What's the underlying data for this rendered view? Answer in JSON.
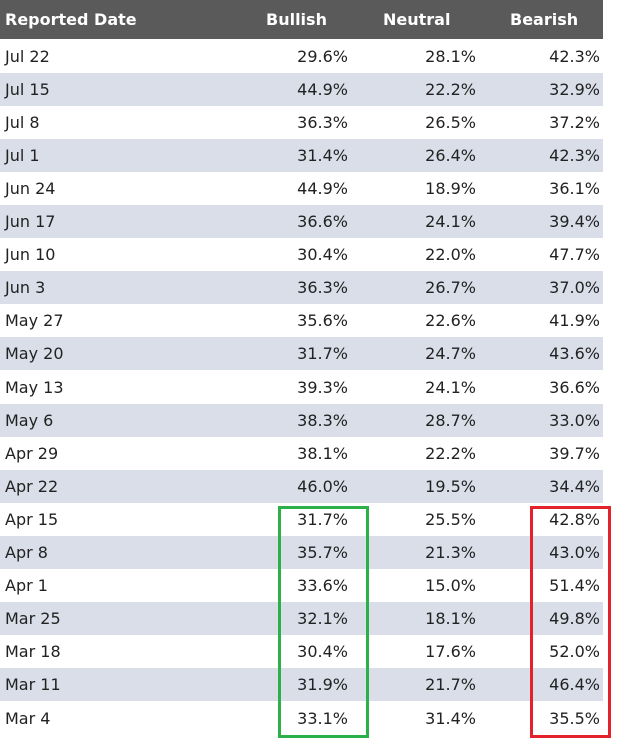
{
  "table": {
    "header": [
      "Reported Date",
      "Bullish",
      "Neutral",
      "Bearish"
    ],
    "rows": [
      [
        "Jul 22",
        "29.6%",
        "28.1%",
        "42.3%"
      ],
      [
        "Jul 15",
        "44.9%",
        "22.2%",
        "32.9%"
      ],
      [
        "Jul 8",
        "36.3%",
        "26.5%",
        "37.2%"
      ],
      [
        "Jul 1",
        "31.4%",
        "26.4%",
        "42.3%"
      ],
      [
        "Jun 24",
        "44.9%",
        "18.9%",
        "36.1%"
      ],
      [
        "Jun 17",
        "36.6%",
        "24.1%",
        "39.4%"
      ],
      [
        "Jun 10",
        "30.4%",
        "22.0%",
        "47.7%"
      ],
      [
        "Jun 3",
        "36.3%",
        "26.7%",
        "37.0%"
      ],
      [
        "May 27",
        "35.6%",
        "22.6%",
        "41.9%"
      ],
      [
        "May 20",
        "31.7%",
        "24.7%",
        "43.6%"
      ],
      [
        "May 13",
        "39.3%",
        "24.1%",
        "36.6%"
      ],
      [
        "May 6",
        "38.3%",
        "28.7%",
        "33.0%"
      ],
      [
        "Apr 29",
        "38.1%",
        "22.2%",
        "39.7%"
      ],
      [
        "Apr 22",
        "46.0%",
        "19.5%",
        "34.4%"
      ],
      [
        "Apr 15",
        "31.7%",
        "25.5%",
        "42.8%"
      ],
      [
        "Apr 8",
        "35.7%",
        "21.3%",
        "43.0%"
      ],
      [
        "Apr 1",
        "33.6%",
        "15.0%",
        "51.4%"
      ],
      [
        "Mar 25",
        "32.1%",
        "18.1%",
        "49.8%"
      ],
      [
        "Mar 18",
        "30.4%",
        "17.6%",
        "52.0%"
      ],
      [
        "Mar 11",
        "31.9%",
        "21.7%",
        "46.4%"
      ],
      [
        "Mar 4",
        "33.1%",
        "31.4%",
        "35.5%"
      ]
    ]
  }
}
